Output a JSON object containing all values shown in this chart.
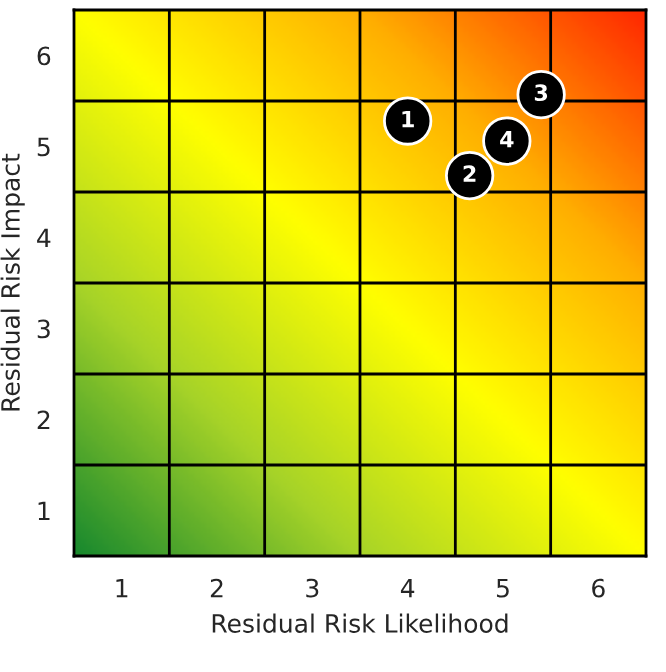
{
  "chart_data": {
    "type": "scatter",
    "xlabel": "Residual Risk Likelihood",
    "ylabel": "Residual Risk Impact",
    "xlim": [
      0.5,
      6.5
    ],
    "ylim": [
      0.5,
      6.5
    ],
    "xticks": [
      1,
      2,
      3,
      4,
      5,
      6
    ],
    "yticks": [
      1,
      2,
      3,
      4,
      5,
      6
    ],
    "grid": true,
    "marker": "circle",
    "series": [
      {
        "color": "#000000",
        "x": [
          4.0,
          4.65,
          5.4,
          5.04
        ],
        "values": [
          5.28,
          4.68,
          5.57,
          5.06
        ]
      }
    ],
    "annotations": [
      {
        "text": "1",
        "x": 4.0,
        "y": 5.28
      },
      {
        "text": "2",
        "x": 4.65,
        "y": 4.68
      },
      {
        "text": "3",
        "x": 5.4,
        "y": 5.57
      },
      {
        "text": "4",
        "x": 5.04,
        "y": 5.06
      }
    ]
  }
}
